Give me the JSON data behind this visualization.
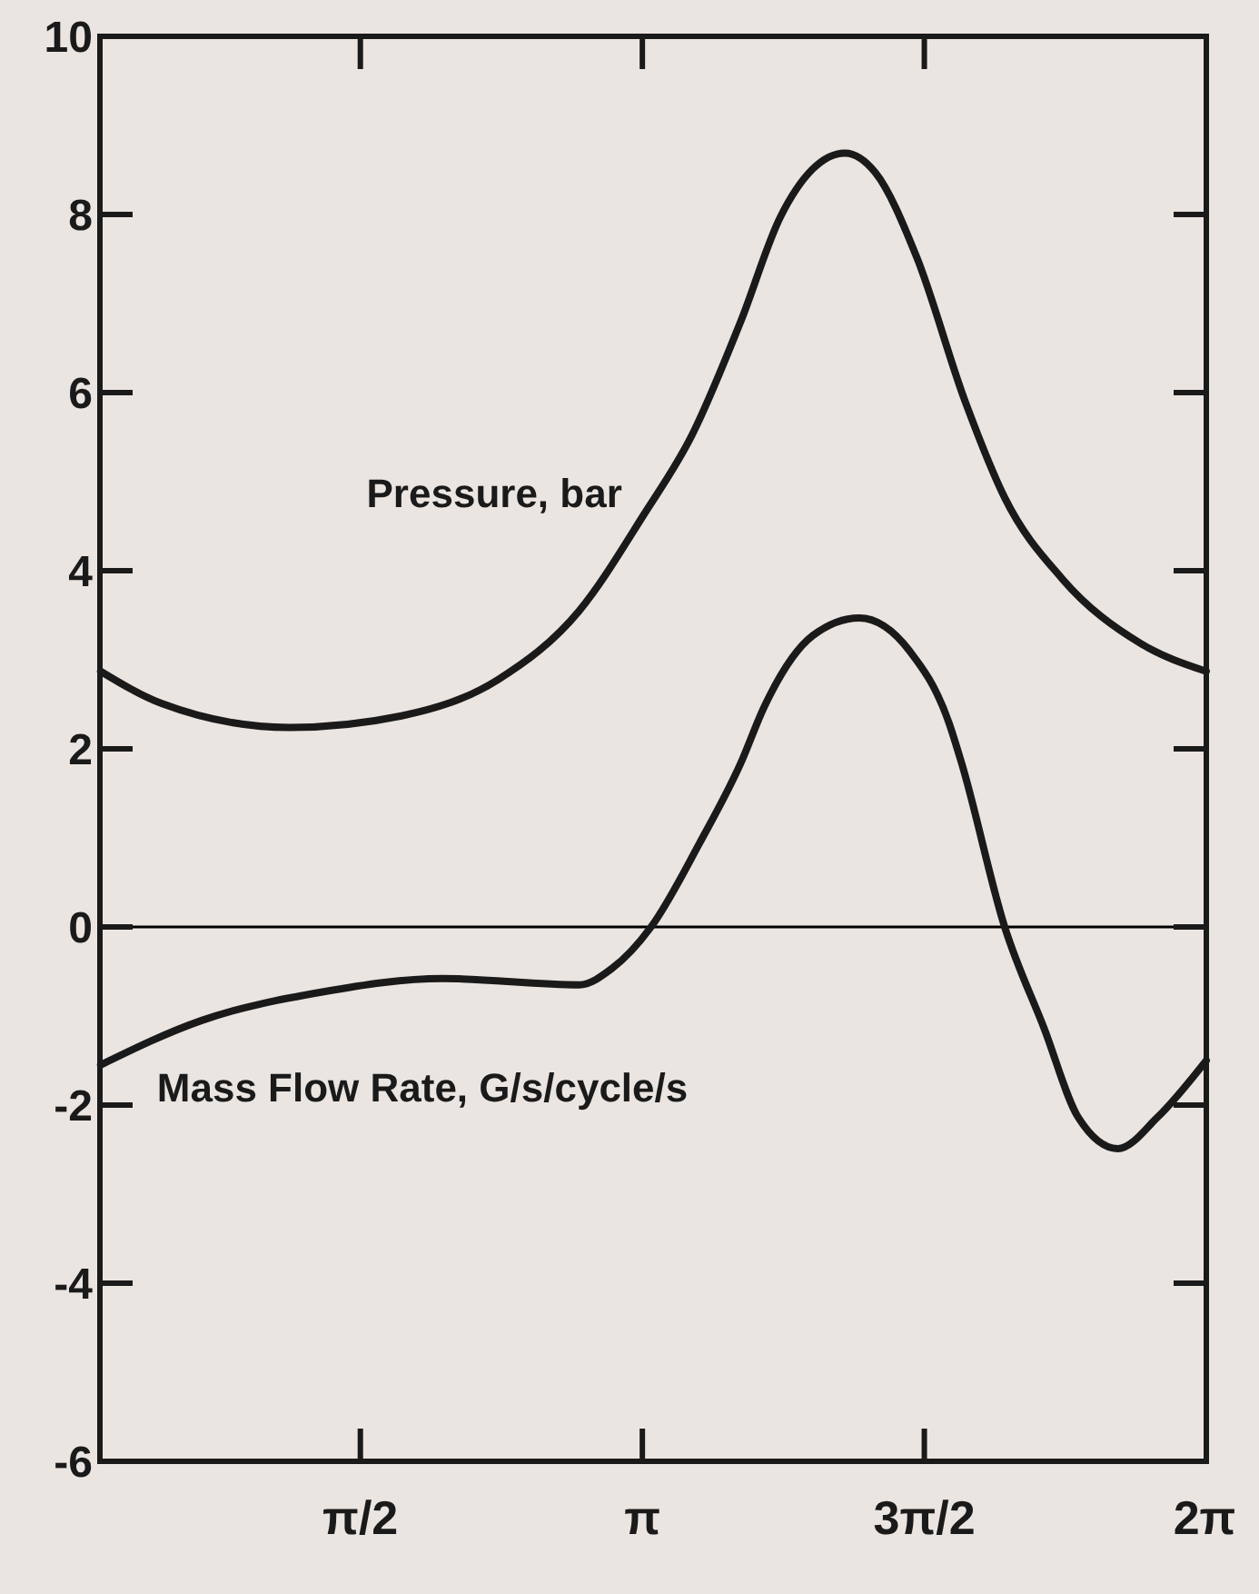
{
  "chart_data": {
    "type": "line",
    "xlim": [
      0.12,
      6.2832
    ],
    "ylim": [
      -6,
      10
    ],
    "xticks": [
      {
        "value": 1.5708,
        "label": "π/2"
      },
      {
        "value": 3.1416,
        "label": "π"
      },
      {
        "value": 4.7124,
        "label": "3π/2"
      },
      {
        "value": 6.2832,
        "label": "2π"
      }
    ],
    "yticks": [
      -6,
      -4,
      -2,
      0,
      2,
      4,
      6,
      8,
      10
    ],
    "ref_lines": [
      {
        "axis": "y",
        "value": 0,
        "color": "#000000"
      }
    ],
    "grid": false,
    "legend": "left",
    "marker": "none",
    "line_style": "solid",
    "series": [
      {
        "name": "Pressure, bar",
        "color": "#1a1a1a",
        "x": [
          0.124,
          0.463,
          1.176,
          1.8,
          2.34,
          2.79,
          3.15,
          3.42,
          3.69,
          3.91,
          4.09,
          4.27,
          4.44,
          4.67,
          4.94,
          5.16,
          5.48,
          5.92,
          6.283
        ],
        "values": [
          2.87,
          2.51,
          2.24,
          2.37,
          2.78,
          3.55,
          4.63,
          5.53,
          6.8,
          7.97,
          8.51,
          8.69,
          8.47,
          7.52,
          5.9,
          4.82,
          3.91,
          3.18,
          2.87
        ]
      },
      {
        "name": "Mass Flow Rate, G/s/cycle/s",
        "color": "#1a1a1a",
        "x": [
          0.124,
          0.687,
          1.36,
          2.03,
          2.79,
          2.97,
          3.19,
          3.46,
          3.69,
          3.82,
          4.09,
          4.35,
          4.63,
          4.85,
          4.92,
          5.16,
          5.38,
          5.57,
          5.79,
          6.01,
          6.283
        ],
        "values": [
          -1.55,
          -1.05,
          -0.73,
          -0.58,
          -0.65,
          -0.47,
          0,
          0.94,
          1.84,
          2.47,
          3.27,
          3.47,
          3.1,
          2.29,
          1.84,
          0,
          -1.14,
          -2.14,
          -2.49,
          -2.14,
          -1.5
        ]
      }
    ]
  }
}
